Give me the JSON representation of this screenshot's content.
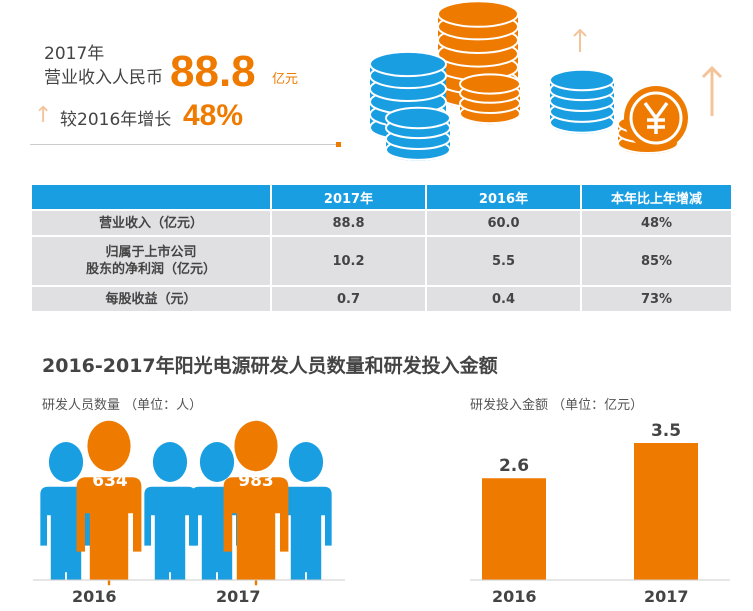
{
  "summary": {
    "year_label": "2017年",
    "revenue_label": "营业收入人民币",
    "revenue_value": "88.8",
    "revenue_unit": "亿元",
    "growth_label": "较2016年增长",
    "growth_value": "48%",
    "arrow": "↑"
  },
  "table": {
    "headers": [
      "",
      "2017年",
      "2016年",
      "本年比上年增减"
    ],
    "rows": [
      {
        "label": "营业收入（亿元）",
        "v2017": "88.8",
        "v2016": "60.0",
        "change": "48%"
      },
      {
        "label1": "归属于上市公司",
        "label2": "股东的净利润（亿元）",
        "v2017": "10.2",
        "v2016": "5.5",
        "change": "85%"
      },
      {
        "label": "每股收益（元）",
        "v2017": "0.7",
        "v2016": "0.4",
        "change": "73%"
      }
    ]
  },
  "section_title": "2016-2017年阳光电源研发人员数量和研发投入金额",
  "people": {
    "subtitle": "研发人员数量 （单位：人）",
    "groups": [
      {
        "year": "2016",
        "count": "634"
      },
      {
        "year": "2017",
        "count": "983"
      }
    ]
  },
  "colors": {
    "orange": "#ee7b00",
    "blue": "#1a9ee2"
  },
  "chart_data": {
    "type": "bar",
    "title": "研发投入金额 （单位：亿元）",
    "categories": [
      "2016",
      "2017"
    ],
    "values": [
      2.6,
      3.5
    ],
    "value_labels": [
      "2.6",
      "3.5"
    ],
    "ylim": [
      0,
      3.5
    ],
    "xlabel": "",
    "ylabel": "",
    "grid": false
  }
}
